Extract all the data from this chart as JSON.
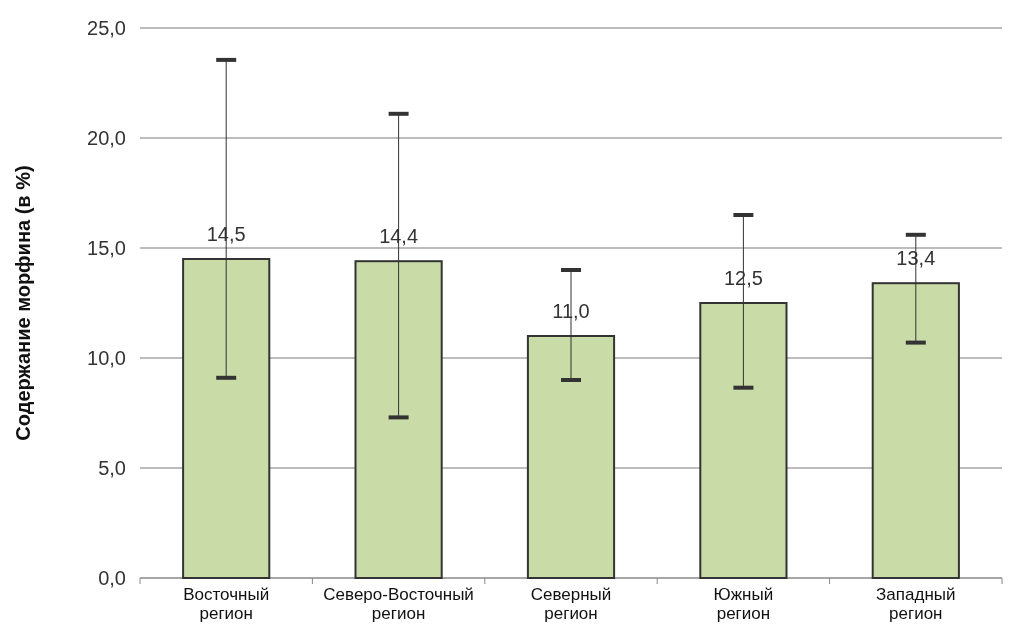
{
  "chart_data": {
    "type": "bar",
    "ylabel": "Содержание морфина (в %)",
    "categories": [
      "Восточный регион",
      "Северо-Восточный регион",
      "Северный регион",
      "Южный регион",
      "Западный регион"
    ],
    "values": [
      14.5,
      14.4,
      11.0,
      12.5,
      13.4
    ],
    "value_labels": [
      "14,5",
      "14,4",
      "11,0",
      "12,5",
      "13,4"
    ],
    "errors": [
      [
        9.1,
        23.55
      ],
      [
        7.3,
        21.1
      ],
      [
        9.0,
        14.0
      ],
      [
        8.65,
        16.5
      ],
      [
        10.7,
        15.6
      ]
    ],
    "color": "#c9dba6",
    "ylim": [
      0,
      25
    ],
    "yticks": [
      {
        "value": 0,
        "label": "0,0"
      },
      {
        "value": 5,
        "label": "5,0"
      },
      {
        "value": 10,
        "label": "10,0"
      },
      {
        "value": 15,
        "label": "15,0"
      },
      {
        "value": 20,
        "label": "20,0"
      },
      {
        "value": 25,
        "label": "25,0"
      }
    ],
    "grid": "y"
  }
}
